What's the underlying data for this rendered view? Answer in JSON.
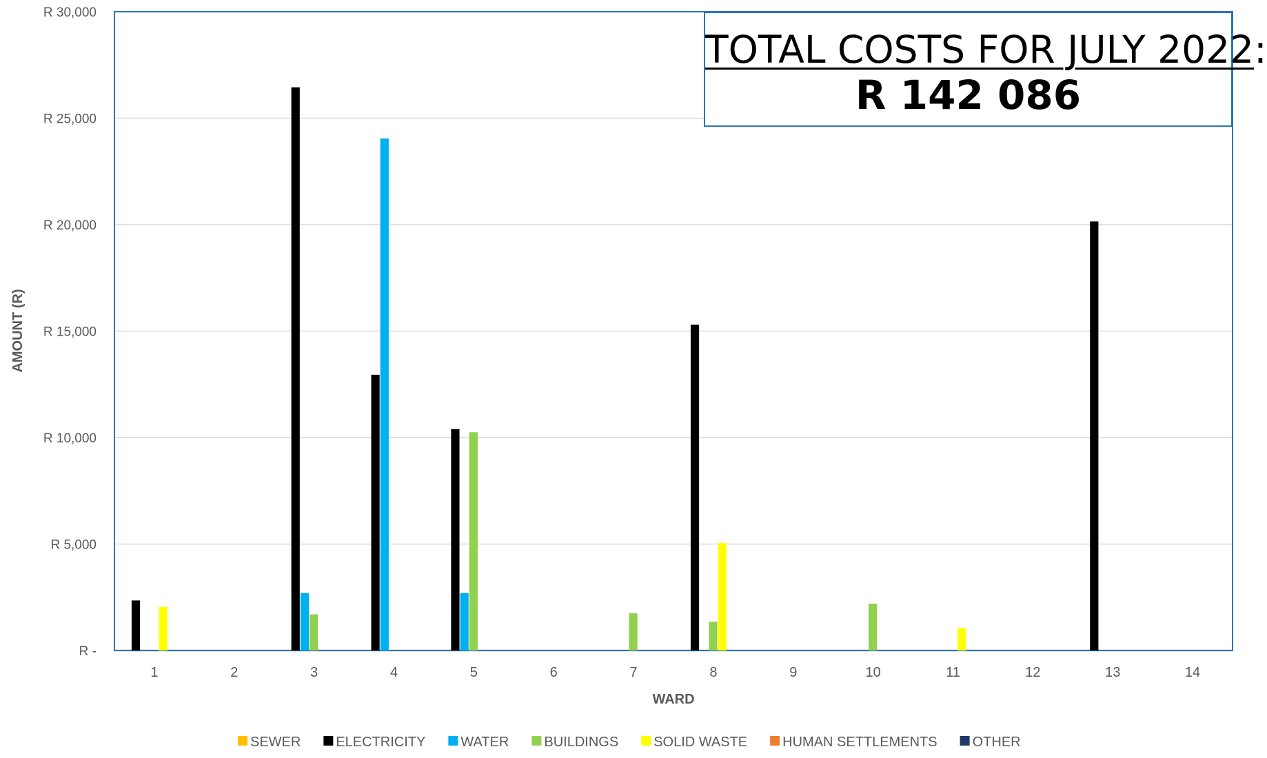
{
  "total_box": {
    "heading": "TOTAL COSTS FOR JULY 2022",
    "heading_suffix": ":",
    "value": "R 142 086"
  },
  "chart_data": {
    "type": "bar",
    "xlabel": "WARD",
    "ylabel": "AMOUNT (R)",
    "ylim": [
      0,
      30000
    ],
    "grid": true,
    "legend_position": "bottom",
    "y_tick_labels": [
      "R -",
      "R 5,000",
      "R 10,000",
      "R 15,000",
      "R 20,000",
      "R 25,000",
      "R 30,000"
    ],
    "y_tick_values": [
      0,
      5000,
      10000,
      15000,
      20000,
      25000,
      30000
    ],
    "categories": [
      "1",
      "2",
      "3",
      "4",
      "5",
      "6",
      "7",
      "8",
      "9",
      "10",
      "11",
      "12",
      "13",
      "14"
    ],
    "series": [
      {
        "name": "SEWER",
        "color": "#ffc000",
        "values": [
          0,
          0,
          0,
          0,
          0,
          0,
          0,
          0,
          0,
          0,
          0,
          0,
          0,
          0
        ]
      },
      {
        "name": "ELECTRICITY",
        "color": "#000000",
        "values": [
          2350,
          0,
          26450,
          12950,
          10400,
          0,
          0,
          15300,
          0,
          0,
          0,
          0,
          20150,
          0
        ]
      },
      {
        "name": "WATER",
        "color": "#00b0f0",
        "values": [
          0,
          0,
          2700,
          24050,
          2700,
          0,
          0,
          0,
          0,
          0,
          0,
          0,
          0,
          0
        ]
      },
      {
        "name": "BUILDINGS",
        "color": "#92d050",
        "values": [
          0,
          0,
          1700,
          0,
          10250,
          0,
          1750,
          1350,
          0,
          2200,
          0,
          0,
          0,
          0
        ]
      },
      {
        "name": "SOLID WASTE",
        "color": "#ffff00",
        "values": [
          2050,
          0,
          0,
          0,
          0,
          0,
          0,
          5050,
          0,
          0,
          1050,
          0,
          0,
          0
        ]
      },
      {
        "name": "HUMAN SETTLEMENTS",
        "color": "#ed7d31",
        "values": [
          0,
          0,
          0,
          0,
          0,
          0,
          0,
          0,
          0,
          0,
          0,
          0,
          0,
          0
        ]
      },
      {
        "name": "OTHER",
        "color": "#1f3864",
        "values": [
          0,
          0,
          0,
          0,
          0,
          0,
          0,
          0,
          0,
          0,
          0,
          0,
          0,
          0
        ]
      }
    ]
  }
}
